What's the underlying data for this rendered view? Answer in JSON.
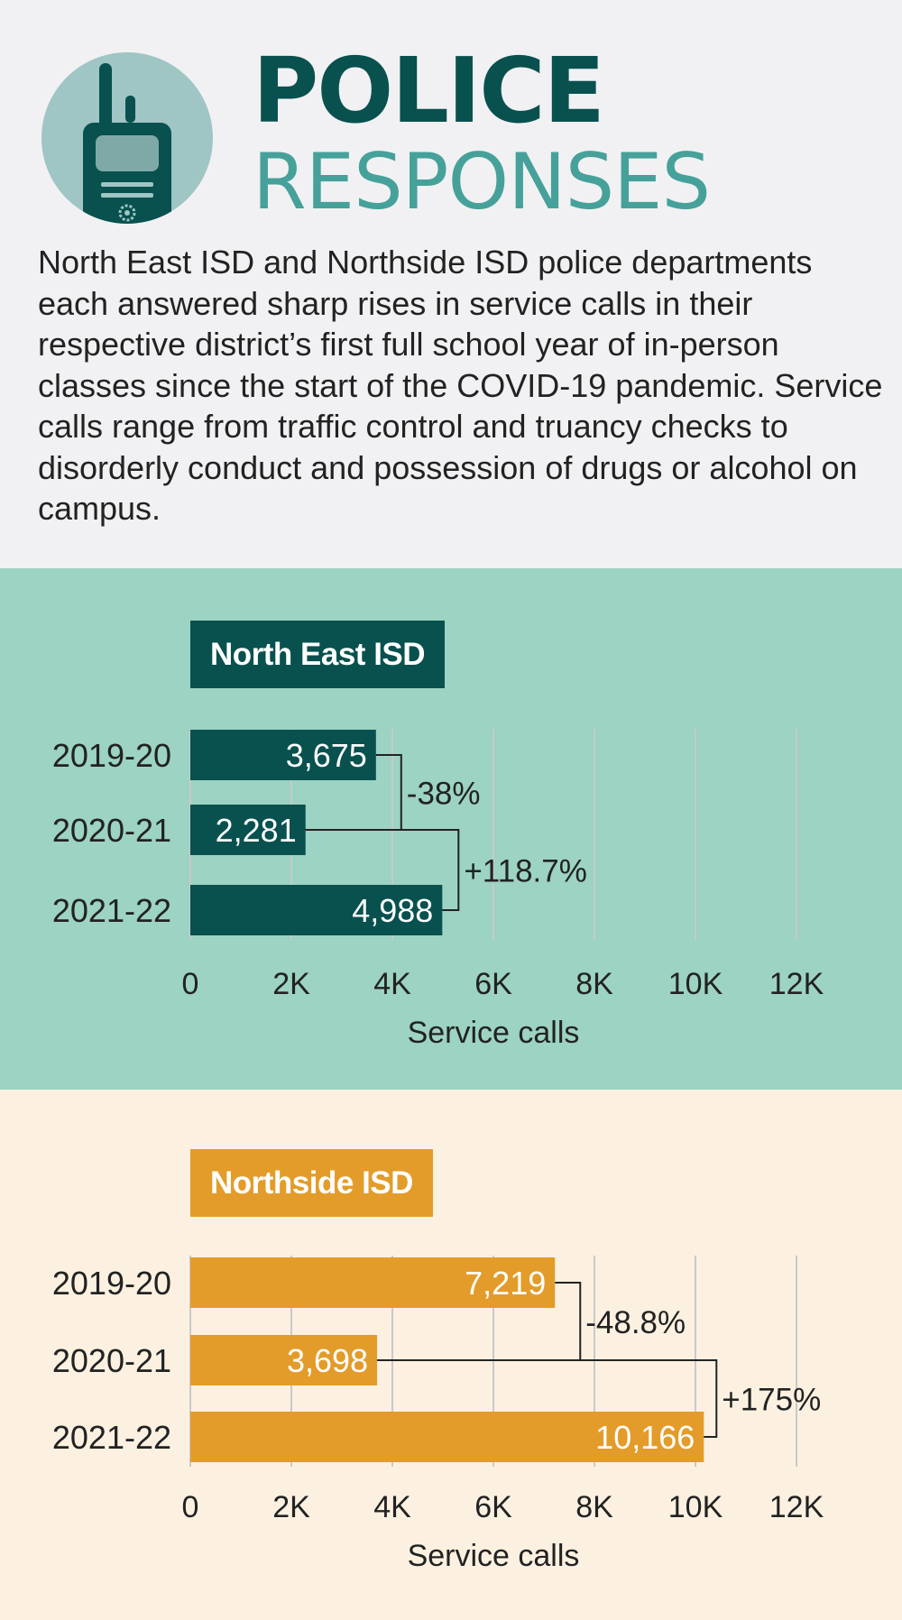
{
  "title": {
    "line1": "POLICE",
    "line2": "RESPONSES"
  },
  "intro": "North East ISD and Northside ISD police departments each answered sharp rises in service calls in their respective district’s first full school year of in-person classes since the start of the COVID-19 pandemic. Service calls range from traffic control and truancy checks to disorderly conduct and possession of drugs or alcohol on campus.",
  "colors": {
    "north_east": "#08514f",
    "northside": "#e39c2a",
    "teal_light": "#46a19a",
    "panel_ne": "#9cd3c2",
    "panel_ns": "#fcf1e1"
  },
  "icon": "police-radio-icon",
  "chart_data": [
    {
      "type": "bar",
      "orientation": "horizontal",
      "title": "North East ISD",
      "categories": [
        "2019-20",
        "2020-21",
        "2021-22"
      ],
      "values": [
        3675,
        2281,
        4988
      ],
      "value_labels": [
        "3,675",
        "2,281",
        "4,988"
      ],
      "changes": [
        "-38%",
        "+118.7%"
      ],
      "xlabel": "Service calls",
      "xticks": [
        "0",
        "2K",
        "4K",
        "6K",
        "8K",
        "10K",
        "12K"
      ],
      "xlim": [
        0,
        12000
      ],
      "grid": true
    },
    {
      "type": "bar",
      "orientation": "horizontal",
      "title": "Northside ISD",
      "categories": [
        "2019-20",
        "2020-21",
        "2021-22"
      ],
      "values": [
        7219,
        3698,
        10166
      ],
      "value_labels": [
        "7,219",
        "3,698",
        "10,166"
      ],
      "changes": [
        "-48.8%",
        "+175%"
      ],
      "xlabel": "Service calls",
      "xticks": [
        "0",
        "2K",
        "4K",
        "6K",
        "8K",
        "10K",
        "12K"
      ],
      "xlim": [
        0,
        12000
      ],
      "grid": true
    }
  ]
}
